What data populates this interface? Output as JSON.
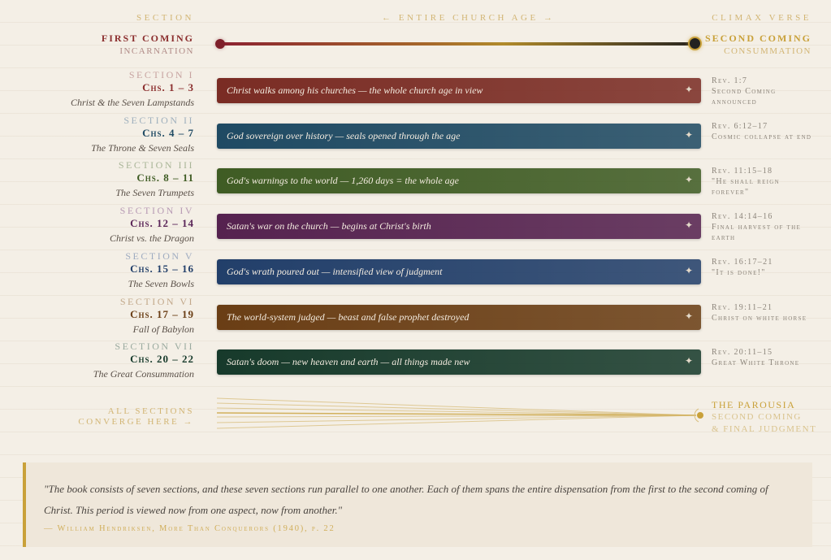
{
  "header": {
    "section": "Section",
    "center": "← Entire Church Age →",
    "climax": "Climax Verse"
  },
  "timeline": {
    "start_title": "First Coming",
    "start_sub": "Incarnation",
    "end_title": "Second Coming",
    "end_sub": "Consummation"
  },
  "sections": [
    {
      "label": "Section I",
      "chapters": "Chs. 1 – 3",
      "title": "Christ & the Seven Lampstands",
      "summary": "Christ walks among his churches — the whole church age in view",
      "verse": "Rev. 1:7",
      "climax": "Second Coming announced",
      "color": "#7a2c24",
      "label_color": "#c7a3a0",
      "ch_color": "#8b2e2e"
    },
    {
      "label": "Section II",
      "chapters": "Chs. 4 – 7",
      "title": "The Throne & Seven Seals",
      "summary": "God sovereign over history — seals opened through the age",
      "verse": "Rev. 6:12–17",
      "climax": "Cosmic collapse at end",
      "color": "#1f4a63",
      "label_color": "#9fb0bd",
      "ch_color": "#1f4a63"
    },
    {
      "label": "Section III",
      "chapters": "Chs. 8 – 11",
      "title": "The Seven Trumpets",
      "summary": "God's warnings to the world — 1,260 days = the whole age",
      "verse": "Rev. 11:15–18",
      "climax": "\"He shall reign forever\"",
      "color": "#3f5c24",
      "label_color": "#a9b597",
      "ch_color": "#3f5c24"
    },
    {
      "label": "Section IV",
      "chapters": "Chs. 12 – 14",
      "title": "Christ vs. the Dragon",
      "summary": "Satan's war on the church — begins at Christ's birth",
      "verse": "Rev. 14:14–16",
      "climax": "Final harvest of the earth",
      "color": "#55224f",
      "label_color": "#b79ab4",
      "ch_color": "#5a2558"
    },
    {
      "label": "Section V",
      "chapters": "Chs. 15 – 16",
      "title": "The Seven Bowls",
      "summary": "God's wrath poured out — intensified view of judgment",
      "verse": "Rev. 16:17–21",
      "climax": "\"It is done!\"",
      "color": "#223f6a",
      "label_color": "#9eabc0",
      "ch_color": "#223f6a"
    },
    {
      "label": "Section VI",
      "chapters": "Chs. 17 – 19",
      "title": "Fall of Babylon",
      "summary": "The world-system judged — beast and false prophet destroyed",
      "verse": "Rev. 19:11–21",
      "climax": "Christ on white horse",
      "color": "#6a3e15",
      "label_color": "#c2a88a",
      "ch_color": "#6a3e15"
    },
    {
      "label": "Section VII",
      "chapters": "Chs. 20 – 22",
      "title": "The Great Consummation",
      "summary": "Satan's doom — new heaven and earth — all things made new",
      "verse": "Rev. 20:11–15",
      "climax": "Great White Throne",
      "color": "#173a2b",
      "label_color": "#9aaa9f",
      "ch_color": "#173a2b"
    }
  ],
  "converge": {
    "left_line1": "All sections",
    "left_line2": "converge here →",
    "title": "The Parousia",
    "sub1": "Second Coming",
    "sub2": "& Final Judgment"
  },
  "quote": {
    "text": "\"The book consists of seven sections, and these seven sections run parallel to one another. Each of them spans the entire dispensation from the first to the second coming of Christ. This period is viewed now from one aspect, now from another.\"",
    "attribution": "— William Hendriksen, More Than Conquerors (1940), p. 22"
  },
  "colors": {
    "gold": "#c9a13a",
    "accent_red": "#8b2e2e"
  }
}
